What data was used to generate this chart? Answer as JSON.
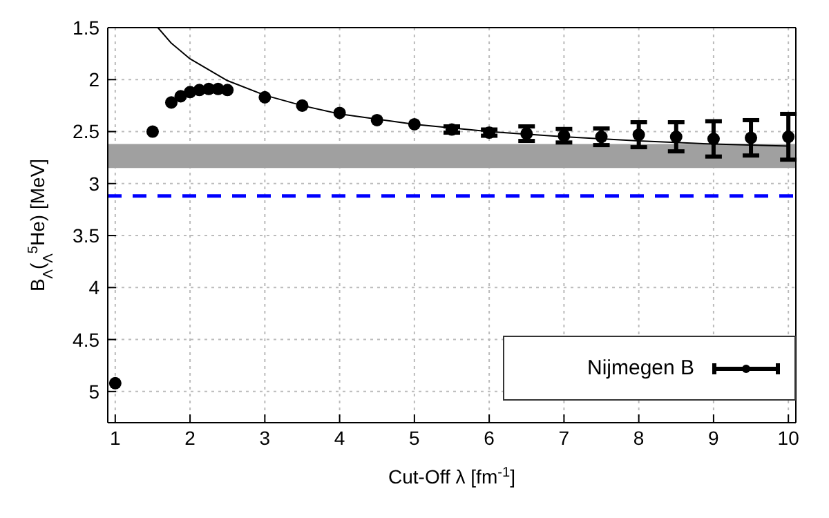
{
  "chart_data": {
    "type": "scatter",
    "xlabel": "Cut-Off λ [fm$^{-1}$]",
    "ylabel": "B$_{Λ}$($_{Λ}$$^{5}$He) [MeV]",
    "xlim": [
      0.9,
      10.1
    ],
    "xticks": [
      1,
      2,
      3,
      4,
      5,
      6,
      7,
      8,
      9,
      10
    ],
    "ylim": [
      5.3,
      1.5
    ],
    "yticks": [
      1.5,
      2,
      2.5,
      3,
      3.5,
      4,
      4.5,
      5
    ],
    "x": [
      1,
      1.5,
      1.75,
      1.875,
      2,
      2.125,
      2.25,
      2.375,
      2.5,
      3,
      3.5,
      4,
      4.5,
      5,
      5.5,
      6,
      6.5,
      7,
      7.5,
      8,
      8.5,
      9,
      9.5,
      10
    ],
    "series": [
      {
        "name": "Nijmegen B",
        "marker": "circle",
        "color": "#000000",
        "values": [
          4.92,
          2.5,
          2.22,
          2.16,
          2.12,
          2.1,
          2.09,
          2.09,
          2.1,
          2.17,
          2.25,
          2.32,
          2.39,
          2.43,
          2.48,
          2.51,
          2.52,
          2.54,
          2.55,
          2.53,
          2.55,
          2.57,
          2.56,
          2.55
        ],
        "errors": [
          null,
          null,
          null,
          null,
          null,
          null,
          null,
          null,
          null,
          null,
          null,
          null,
          null,
          null,
          0.03,
          0.03,
          0.07,
          0.065,
          0.08,
          0.12,
          0.14,
          0.17,
          0.17,
          0.22
        ]
      },
      {
        "type": "line",
        "marker": "none",
        "color": "#000000",
        "x": [
          1.57,
          1.75,
          2,
          2.5,
          3,
          3.5,
          4,
          5,
          6,
          7,
          8,
          9,
          10
        ],
        "values": [
          1.5,
          1.65,
          1.8,
          2.01,
          2.15,
          2.25,
          2.33,
          2.43,
          2.5,
          2.55,
          2.59,
          2.62,
          2.64
        ]
      }
    ],
    "bands": [
      {
        "axis": "y",
        "from": 2.62,
        "to": 2.85,
        "color": "#a0a0a0"
      }
    ],
    "ref_lines": [
      {
        "axis": "y",
        "value": 3.12,
        "color": "#0000ff",
        "line_style": "dashed"
      }
    ],
    "grid": true,
    "legend": "bottom right"
  }
}
